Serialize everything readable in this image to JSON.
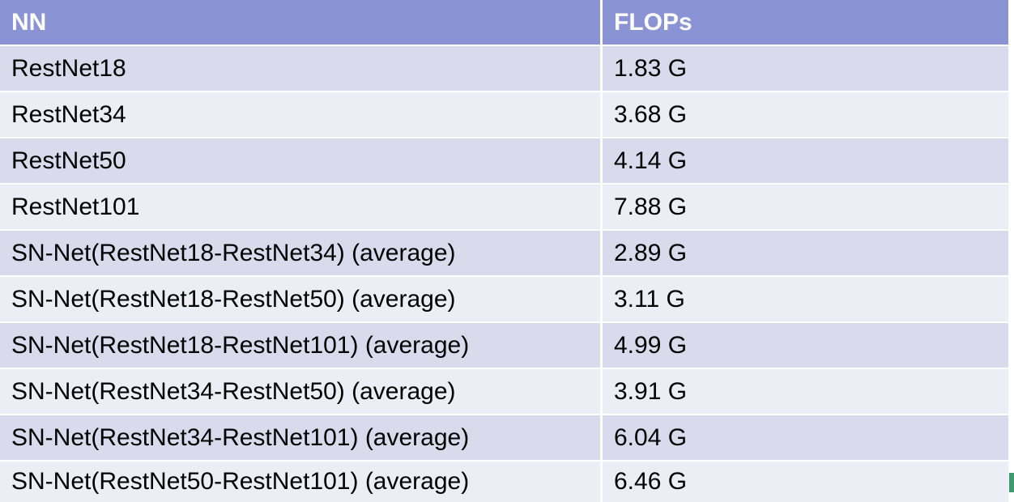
{
  "table": {
    "headers": {
      "nn": "NN",
      "flops": "FLOPs"
    },
    "rows": [
      {
        "nn": "RestNet18",
        "flops": "1.83 G"
      },
      {
        "nn": "RestNet34",
        "flops": "3.68 G"
      },
      {
        "nn": "RestNet50",
        "flops": "4.14 G"
      },
      {
        "nn": "RestNet101",
        "flops": "7.88 G"
      },
      {
        "nn": "SN-Net(RestNet18-RestNet34) (average)",
        "flops": "2.89 G"
      },
      {
        "nn": "SN-Net(RestNet18-RestNet50) (average)",
        "flops": "3.11 G"
      },
      {
        "nn": "SN-Net(RestNet18-RestNet101) (average)",
        "flops": "4.99 G"
      },
      {
        "nn": "SN-Net(RestNet34-RestNet50) (average)",
        "flops": "3.91 G"
      },
      {
        "nn": "SN-Net(RestNet34-RestNet101) (average)",
        "flops": "6.04 G"
      },
      {
        "nn": "SN-Net(RestNet50-RestNet101) (average)",
        "flops": "6.46 G"
      }
    ]
  },
  "colors": {
    "header_bg": "#8a93d3",
    "row_odd_bg": "#d9dbec",
    "row_even_bg": "#edeef5"
  }
}
